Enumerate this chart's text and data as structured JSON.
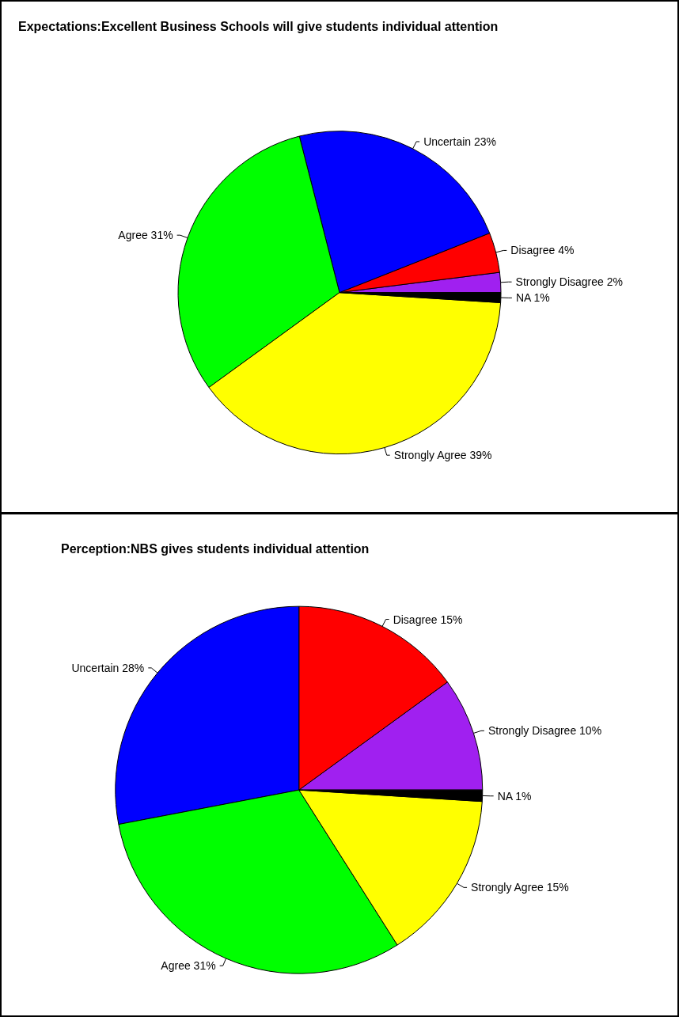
{
  "chart_data": [
    {
      "type": "pie",
      "title": "Expectations:Excellent Business Schools will give students individual attention",
      "categories": [
        "Strongly Disagree",
        "Disagree",
        "Uncertain",
        "Agree",
        "Strongly Agree",
        "NA"
      ],
      "values": [
        2,
        4,
        23,
        31,
        39,
        1
      ],
      "value_labels": [
        "2%",
        "4%",
        "23%",
        "31%",
        "39%",
        "1%"
      ],
      "colors": [
        "#a020f0",
        "#ff0000",
        "#0000ff",
        "#00ff00",
        "#ffff00",
        "#000000"
      ],
      "legend": false
    },
    {
      "type": "pie",
      "title": "Perception:NBS gives students individual attention",
      "categories": [
        "Strongly Disagree",
        "Disagree",
        "Uncertain",
        "Agree",
        "Strongly Agree",
        "NA"
      ],
      "values": [
        10,
        15,
        28,
        31,
        15,
        1
      ],
      "value_labels": [
        "10%",
        "15%",
        "28%",
        "31%",
        "15%",
        "1%"
      ],
      "colors": [
        "#a020f0",
        "#ff0000",
        "#0000ff",
        "#00ff00",
        "#ffff00",
        "#000000"
      ],
      "legend": false
    }
  ]
}
